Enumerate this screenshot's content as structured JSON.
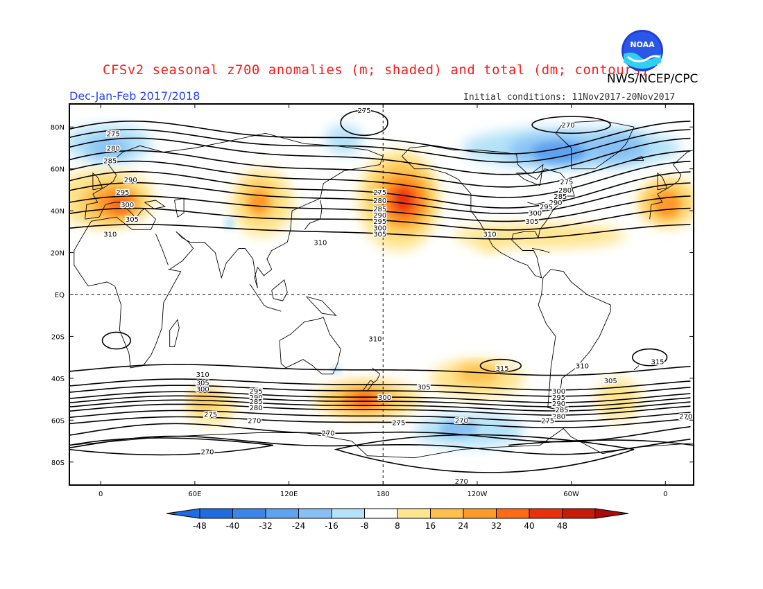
{
  "header": {
    "title": "CFSv2 seasonal z700 anomalies (m; shaded) and total (dm; contours)",
    "agency": "NWS/NCEP/CPC",
    "season": "Dec-Jan-Feb 2017/2018",
    "initial_conditions": "Initial conditions: 11Nov2017-20Nov2017",
    "logo_text": "NOAA"
  },
  "map": {
    "lat_labels": [
      "80N",
      "60N",
      "40N",
      "20N",
      "EQ",
      "20S",
      "40S",
      "60S",
      "80S"
    ],
    "lat_values": [
      80,
      60,
      40,
      20,
      0,
      -20,
      -40,
      -60,
      -80
    ],
    "lon_labels": [
      "0",
      "60E",
      "120E",
      "180",
      "120W",
      "60W",
      "0"
    ],
    "lon_values": [
      0,
      60,
      120,
      180,
      240,
      300,
      360
    ],
    "contour_labels": [
      {
        "text": "275",
        "lon": 168,
        "lat": 88
      },
      {
        "text": "275",
        "lon": 8,
        "lat": 77
      },
      {
        "text": "280",
        "lon": 8,
        "lat": 70
      },
      {
        "text": "285",
        "lon": 6,
        "lat": 64
      },
      {
        "text": "290",
        "lon": 19,
        "lat": 55
      },
      {
        "text": "295",
        "lon": 14,
        "lat": 49
      },
      {
        "text": "300",
        "lon": 17,
        "lat": 43
      },
      {
        "text": "305",
        "lon": 20,
        "lat": 36
      },
      {
        "text": "310",
        "lon": 6,
        "lat": 29
      },
      {
        "text": "310",
        "lon": 140,
        "lat": 25
      },
      {
        "text": "275",
        "lon": 178,
        "lat": 49
      },
      {
        "text": "280",
        "lon": 178,
        "lat": 45
      },
      {
        "text": "285",
        "lon": 178,
        "lat": 41
      },
      {
        "text": "290",
        "lon": 178,
        "lat": 38
      },
      {
        "text": "295",
        "lon": 178,
        "lat": 35
      },
      {
        "text": "300",
        "lon": 178,
        "lat": 32
      },
      {
        "text": "305",
        "lon": 178,
        "lat": 29
      },
      {
        "text": "270",
        "lon": 298,
        "lat": 81
      },
      {
        "text": "275",
        "lon": 297,
        "lat": 54
      },
      {
        "text": "280",
        "lon": 296,
        "lat": 50
      },
      {
        "text": "285",
        "lon": 293,
        "lat": 47
      },
      {
        "text": "290",
        "lon": 290,
        "lat": 44
      },
      {
        "text": "295",
        "lon": 284,
        "lat": 42
      },
      {
        "text": "300",
        "lon": 277,
        "lat": 39
      },
      {
        "text": "305",
        "lon": 275,
        "lat": 35
      },
      {
        "text": "310",
        "lon": 248,
        "lat": 29
      },
      {
        "text": "310",
        "lon": 175,
        "lat": -21
      },
      {
        "text": "315",
        "lon": 256,
        "lat": -35
      },
      {
        "text": "310",
        "lon": 307,
        "lat": -34
      },
      {
        "text": "315",
        "lon": 355,
        "lat": -32
      },
      {
        "text": "310",
        "lon": 65,
        "lat": -38
      },
      {
        "text": "305",
        "lon": 65,
        "lat": -42
      },
      {
        "text": "300",
        "lon": 65,
        "lat": -45
      },
      {
        "text": "295",
        "lon": 99,
        "lat": -46
      },
      {
        "text": "290",
        "lon": 99,
        "lat": -49
      },
      {
        "text": "285",
        "lon": 99,
        "lat": -51
      },
      {
        "text": "280",
        "lon": 99,
        "lat": -54
      },
      {
        "text": "275",
        "lon": 70,
        "lat": -57
      },
      {
        "text": "270",
        "lon": 98,
        "lat": -60
      },
      {
        "text": "305",
        "lon": 206,
        "lat": -44
      },
      {
        "text": "300",
        "lon": 181,
        "lat": -49
      },
      {
        "text": "275",
        "lon": 190,
        "lat": -61
      },
      {
        "text": "270",
        "lon": 230,
        "lat": -60
      },
      {
        "text": "300",
        "lon": 292,
        "lat": -46
      },
      {
        "text": "295",
        "lon": 292,
        "lat": -49
      },
      {
        "text": "290",
        "lon": 292,
        "lat": -52
      },
      {
        "text": "285",
        "lon": 294,
        "lat": -55
      },
      {
        "text": "280",
        "lon": 292,
        "lat": -58
      },
      {
        "text": "275",
        "lon": 285,
        "lat": -60
      },
      {
        "text": "305",
        "lon": 325,
        "lat": -41
      },
      {
        "text": "270",
        "lon": 373,
        "lat": -58
      },
      {
        "text": "270",
        "lon": 145,
        "lat": -66
      },
      {
        "text": "270",
        "lon": 68,
        "lat": -75
      },
      {
        "text": "270",
        "lon": 230,
        "lat": -89
      }
    ]
  },
  "colorbar": {
    "labels": [
      "-48",
      "-40",
      "-32",
      "-24",
      "-16",
      "-8",
      "8",
      "16",
      "24",
      "32",
      "40",
      "48"
    ],
    "colors": [
      "#1f6be0",
      "#3c86ea",
      "#5ea2f0",
      "#86c0f5",
      "#b4e2f8",
      "#ffffff",
      "#ffe58f",
      "#ffc04d",
      "#ff9a2a",
      "#ff6a14",
      "#e8300c",
      "#c81a08"
    ]
  },
  "colors": {
    "title": "#ff1a1a",
    "season": "#2244ff",
    "contour": "#000000",
    "coast": "#000000"
  }
}
